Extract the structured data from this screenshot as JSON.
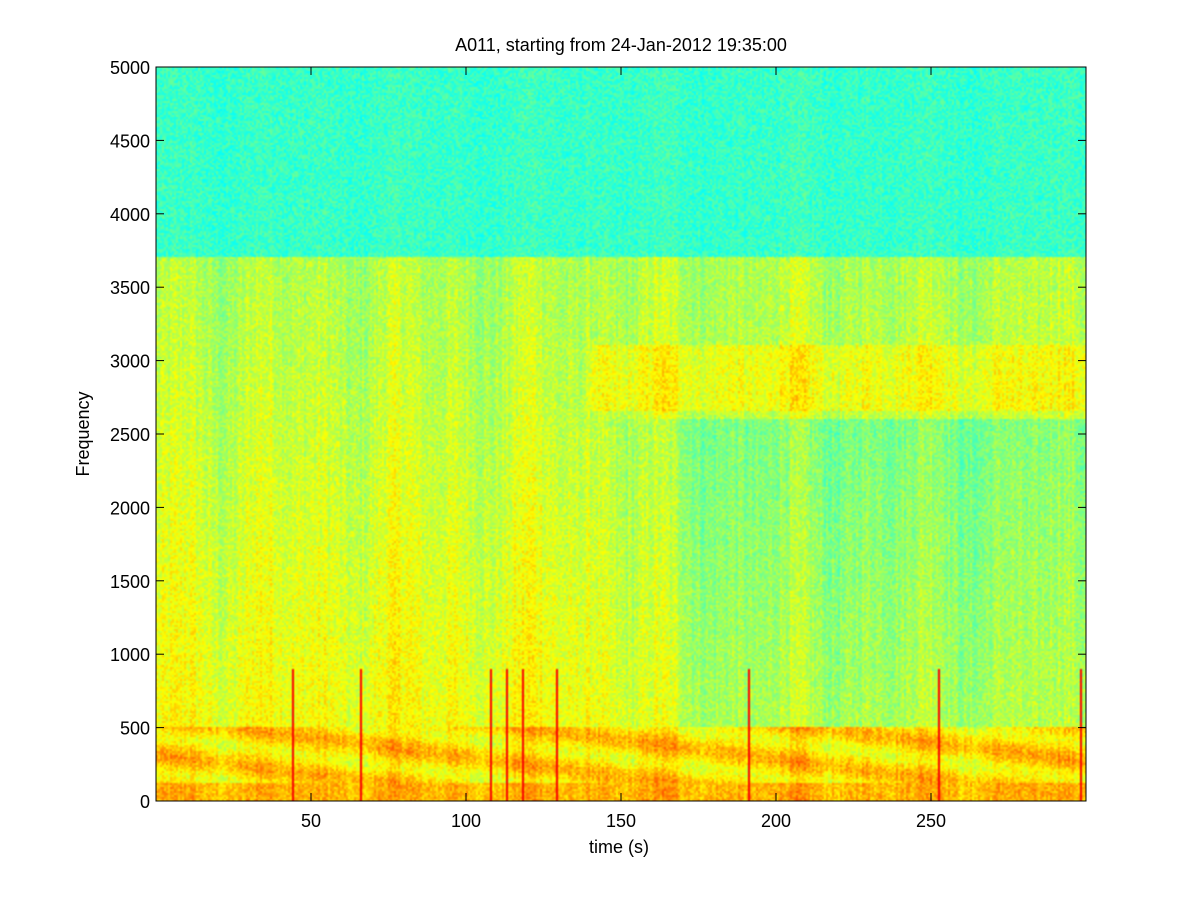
{
  "chart_data": {
    "type": "heatmap",
    "title": "A011, starting from 24-Jan-2012 19:35:00",
    "xlabel": "time (s)",
    "ylabel": "Frequency",
    "xlim": [
      0,
      300
    ],
    "ylim": [
      0,
      5000
    ],
    "x_ticks": [
      50,
      100,
      150,
      200,
      250
    ],
    "y_ticks": [
      0,
      500,
      1000,
      1500,
      2000,
      2500,
      3000,
      3500,
      4000,
      4500,
      5000
    ],
    "colormap": "jet",
    "grid": false,
    "colors": {
      "low": "#1dffe0",
      "mid": "#ffff00",
      "high": "#d00000"
    },
    "features": {
      "band_top_frequency": 3700,
      "strong_energy_band": [
        0,
        500
      ],
      "impulse_times": [
        44,
        66,
        108,
        113,
        118,
        129,
        191,
        252,
        298
      ]
    }
  }
}
